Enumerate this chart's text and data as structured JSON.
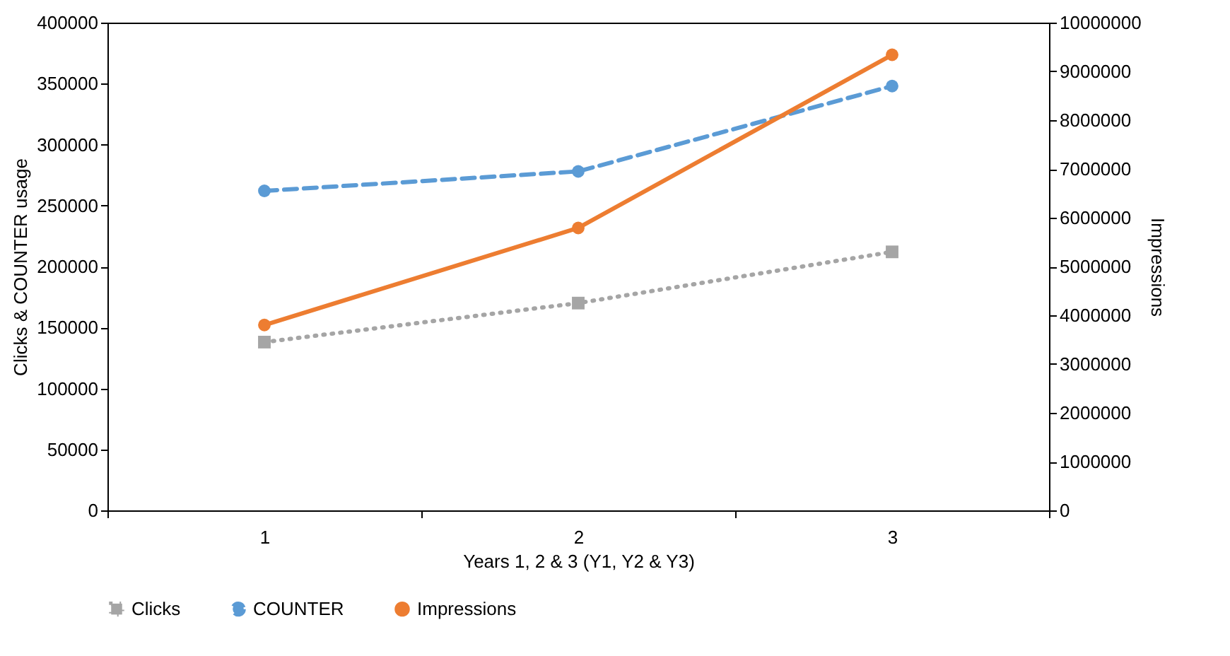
{
  "chart_data": {
    "type": "line",
    "xlabel": "Years 1, 2 & 3 (Y1, Y2 & Y3)",
    "ylabel": "Clicks & COUNTER usage",
    "y2label": "Impressions",
    "categories": [
      "1",
      "2",
      "3"
    ],
    "series": [
      {
        "name": "Clicks",
        "color": "#a5a5a5",
        "values": [
          138000,
          170000,
          212000
        ],
        "marker": "square",
        "line_style": "dotted"
      },
      {
        "name": "COUNTER",
        "color": "#5b9bd5",
        "values": [
          262000,
          278000,
          348000
        ],
        "marker": "circle",
        "line_style": "dashed"
      },
      {
        "name": "Impressions",
        "color": "#ed7d31",
        "values": [
          3800000,
          5790000,
          9340000
        ],
        "marker": "circle",
        "line_style": "solid",
        "axis": "y2"
      }
    ],
    "ylim": [
      0,
      400000
    ],
    "yticks": [
      0,
      50000,
      100000,
      150000,
      200000,
      250000,
      300000,
      350000,
      400000
    ],
    "y2lim": [
      0,
      10000000
    ],
    "y2ticks": [
      0,
      1000000,
      2000000,
      3000000,
      4000000,
      5000000,
      6000000,
      7000000,
      8000000,
      9000000,
      10000000
    ],
    "grid": false,
    "legend": "bottom"
  }
}
